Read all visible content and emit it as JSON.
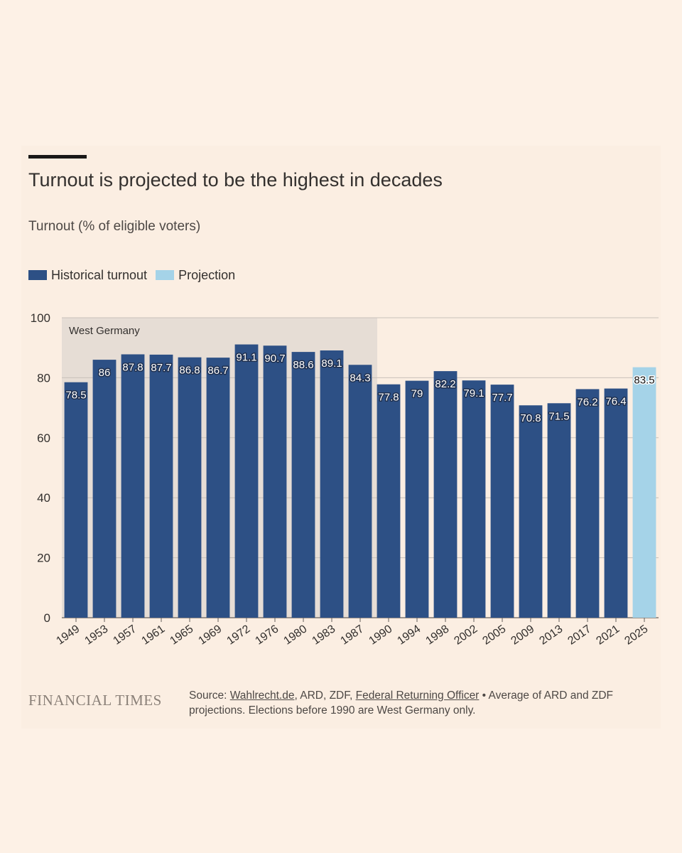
{
  "header": {
    "title": "Turnout is projected to be the highest in decades",
    "subtitle": "Turnout (% of eligible voters)"
  },
  "legend": [
    {
      "label": "Historical turnout",
      "color": "#2d5085"
    },
    {
      "label": "Projection",
      "color": "#a5d3e8"
    }
  ],
  "colors": {
    "historical": "#2d5085",
    "projection": "#a5d3e8",
    "shade": "#e6ddd5",
    "grid": "#c9c1ba",
    "text": "#33302e"
  },
  "chart_data": {
    "type": "bar",
    "categories": [
      "1949",
      "1953",
      "1957",
      "1961",
      "1965",
      "1969",
      "1972",
      "1976",
      "1980",
      "1983",
      "1987",
      "1990",
      "1994",
      "1998",
      "2002",
      "2005",
      "2009",
      "2013",
      "2017",
      "2021",
      "2025"
    ],
    "series": [
      {
        "values": [
          78.5,
          86,
          87.8,
          87.7,
          86.8,
          86.7,
          91.1,
          90.7,
          88.6,
          89.1,
          84.3,
          77.8,
          79,
          82.2,
          79.1,
          77.7,
          70.8,
          71.5,
          76.2,
          76.4,
          83.5
        ]
      }
    ],
    "value_labels": [
      "78.5",
      "86",
      "87.8",
      "87.7",
      "86.8",
      "86.7",
      "91.1",
      "90.7",
      "88.6",
      "89.1",
      "84.3",
      "77.8",
      "79",
      "82.2",
      "79.1",
      "77.7",
      "70.8",
      "71.5",
      "76.2",
      "76.4",
      "83.5"
    ],
    "projection_categories": [
      "2025"
    ],
    "yticks": [
      0,
      20,
      40,
      60,
      80,
      100
    ],
    "ylim": [
      0,
      100
    ],
    "shaded_region": {
      "label": "West Germany",
      "from": "1949",
      "to": "1987"
    },
    "grid": true,
    "legend_position": "top-left"
  },
  "footer": {
    "brand": "FINANCIAL TIMES",
    "source_prefix": "Source: ",
    "source_link1": "Wahlrecht.de",
    "source_mid": ", ARD, ZDF, ",
    "source_link2": "Federal Returning Officer",
    "source_suffix": " • Average of ARD and ZDF projections. Elections before 1990 are West Germany only."
  }
}
